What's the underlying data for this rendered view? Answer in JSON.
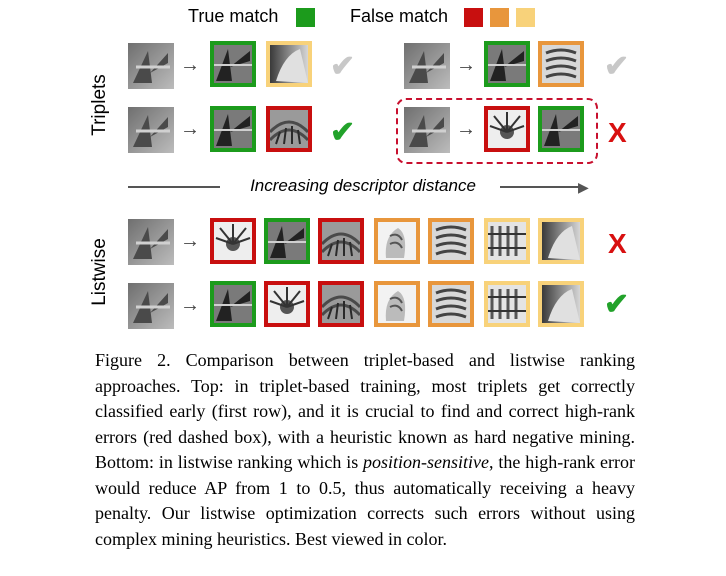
{
  "legend": {
    "true_label": "True match",
    "false_label": "False match",
    "true_color": "#1c9b1c",
    "false_colors": [
      "#c80f0f",
      "#e8963c",
      "#f8d27a"
    ]
  },
  "labels": {
    "triplets": "Triplets",
    "listwise": "Listwise",
    "axis": "Increasing descriptor distance"
  },
  "marks": {
    "check": "✔",
    "cross": "X",
    "arrow": "→"
  },
  "triplets": [
    {
      "row": 1,
      "side": "left",
      "thumbs": [
        "green",
        "yellow"
      ],
      "result": "check-grey"
    },
    {
      "row": 1,
      "side": "right",
      "thumbs": [
        "green",
        "orange"
      ],
      "result": "check-grey"
    },
    {
      "row": 2,
      "side": "left",
      "thumbs": [
        "green",
        "red"
      ],
      "result": "check"
    },
    {
      "row": 2,
      "side": "right",
      "thumbs": [
        "red",
        "green"
      ],
      "result": "cross",
      "highlighted": true
    }
  ],
  "listwise": [
    {
      "thumbs": [
        "red",
        "green",
        "red",
        "orange",
        "orange",
        "yellow",
        "yellow"
      ],
      "result": "cross"
    },
    {
      "thumbs": [
        "green",
        "red",
        "red",
        "orange",
        "orange",
        "yellow",
        "yellow"
      ],
      "result": "check"
    }
  ],
  "caption": {
    "part1": "Figure 2. Comparison between triplet-based and listwise ranking approaches. Top: in triplet-based training, most triplets get correctly classified early (first row), and it is crucial to find and correct high-rank errors (red dashed box), with a heuristic known as hard negative mining. Bottom: in listwise ranking which is ",
    "emph": "position-sensitive",
    "part2": ", the high-rank error would reduce AP from 1 to 0.5, thus automatically receiving a heavy penalty. Our listwise optimization corrects such errors without using complex mining heuristics. Best viewed in color."
  }
}
